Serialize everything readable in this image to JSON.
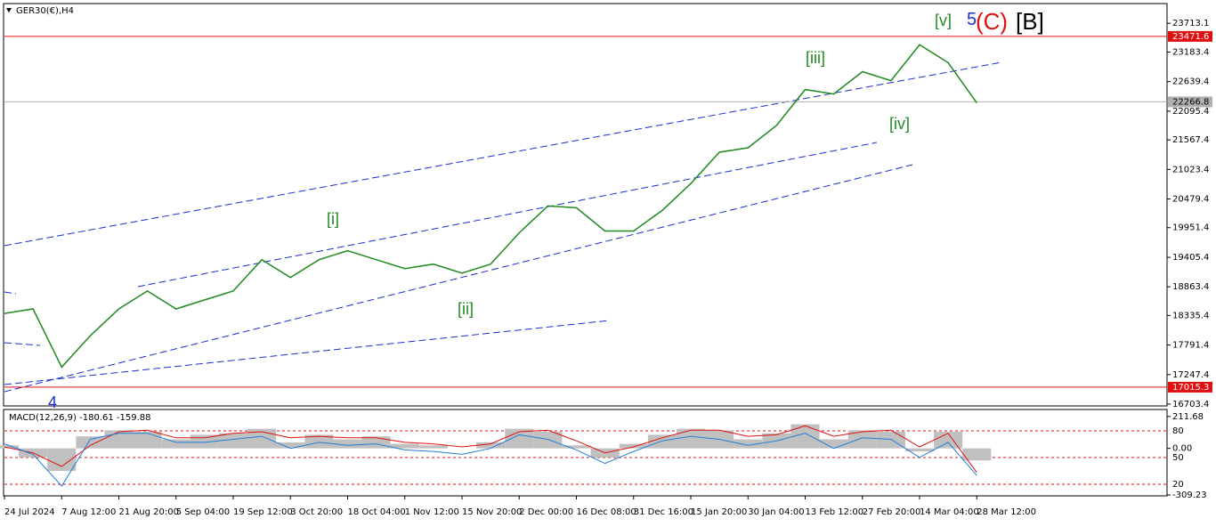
{
  "chart_data": [
    {
      "type": "line",
      "title": "GER30(€),H4",
      "categories": [
        "24 Jul 2024",
        null,
        "7 Aug 12:00",
        null,
        "21 Aug 20:00",
        null,
        "5 Sep 04:00",
        null,
        "19 Sep 12:00",
        null,
        "3 Oct 20:00",
        null,
        "18 Oct 04:00",
        null,
        "1 Nov 12:00",
        null,
        "15 Nov 20:00",
        null,
        "2 Dec 00:00",
        null,
        "16 Dec 08:00",
        null,
        "31 Dec 16:00",
        null,
        "15 Jan 20:00",
        null,
        "30 Jan 04:00",
        null,
        "13 Feb 12:00",
        null,
        "27 Feb 20:00",
        null,
        "14 Mar 04:00",
        null,
        "28 Mar 12:00"
      ],
      "values": [
        18373,
        18456,
        17384,
        17961,
        18456,
        18785,
        18456,
        18621,
        18785,
        19362,
        19033,
        19362,
        19527,
        19362,
        19198,
        19280,
        19115,
        19280,
        19857,
        20351,
        20318,
        19890,
        19890,
        20269,
        20763,
        21340,
        21422,
        21834,
        22494,
        22411,
        22823,
        22658,
        23318,
        22988,
        22247
      ],
      "color": "#1f8a1f",
      "ylim": [
        16670,
        24060
      ],
      "yticks": [
        16703.4,
        17247.4,
        17791.4,
        18335.4,
        18863.4,
        19405.4,
        19951.4,
        20479.4,
        21023.4,
        21567.4,
        22095.4,
        22639.4,
        23183.4,
        23713.1
      ],
      "hlines": [
        {
          "value": 23471.6,
          "color": "#e01010"
        },
        {
          "value": 22266.8,
          "color": "#b0b0b0"
        },
        {
          "value": 17015.3,
          "color": "#e01010"
        }
      ],
      "annotations": [
        "[v]",
        "5",
        "(C)",
        "[B]",
        "[iii]",
        "[iv]",
        "[i]",
        "[ii]",
        "4"
      ]
    },
    {
      "type": "macd",
      "title": "MACD(12,26,9) -180.61 -159.88",
      "categories": [
        "24 Jul 2024",
        null,
        "7 Aug 12:00",
        null,
        "21 Aug 20:00",
        null,
        "5 Sep 04:00",
        null,
        "19 Sep 12:00",
        null,
        "3 Oct 20:00",
        null,
        "18 Oct 04:00",
        null,
        "1 Nov 12:00",
        null,
        "15 Nov 20:00",
        null,
        "2 Dec 00:00",
        null,
        "16 Dec 08:00",
        null,
        "31 Dec 16:00",
        null,
        "15 Jan 20:00",
        null,
        "30 Jan 04:00",
        null,
        "13 Feb 12:00",
        null,
        "27 Feb 20:00",
        null,
        "14 Mar 04:00",
        null,
        "28 Mar 12:00"
      ],
      "series": [
        {
          "color": "#c0c0c0",
          "values": [
            20,
            -60,
            -150,
            80,
            120,
            110,
            60,
            90,
            100,
            130,
            40,
            90,
            60,
            80,
            30,
            20,
            0,
            40,
            130,
            110,
            20,
            -60,
            30,
            90,
            130,
            120,
            60,
            100,
            160,
            60,
            120,
            110,
            -20,
            110,
            -80
          ]
        },
        {
          "color": "#e01010",
          "values": [
            10,
            -30,
            -120,
            20,
            110,
            120,
            70,
            70,
            100,
            110,
            70,
            80,
            70,
            70,
            40,
            30,
            10,
            30,
            110,
            120,
            50,
            -30,
            10,
            70,
            120,
            120,
            80,
            90,
            150,
            80,
            110,
            120,
            10,
            100,
            -160
          ]
        },
        {
          "color": "#1e7fd8",
          "values": [
            30,
            -40,
            -250,
            60,
            100,
            100,
            40,
            40,
            60,
            80,
            0,
            40,
            20,
            30,
            -10,
            -20,
            -40,
            0,
            90,
            60,
            -10,
            -100,
            -20,
            50,
            80,
            60,
            20,
            50,
            100,
            0,
            70,
            60,
            -60,
            40,
            -180
          ]
        }
      ],
      "ylim": [
        -315,
        252
      ],
      "yticks": [
        -309.23,
        {
          "value": 0,
          "label": "0.00"
        },
        211.68
      ],
      "y2lim": [
        7,
        103
      ],
      "y2ticks": [
        20,
        50,
        80
      ],
      "y2color": "#e01010"
    }
  ]
}
